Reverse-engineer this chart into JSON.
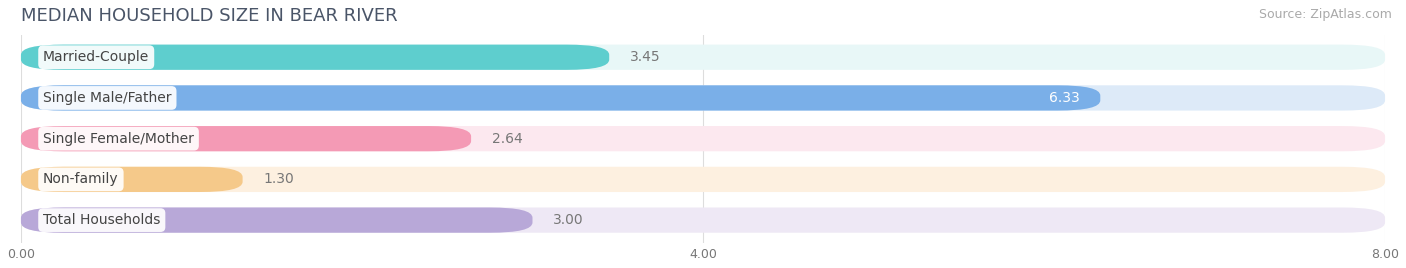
{
  "title": "MEDIAN HOUSEHOLD SIZE IN BEAR RIVER",
  "source": "Source: ZipAtlas.com",
  "categories": [
    "Married-Couple",
    "Single Male/Father",
    "Single Female/Mother",
    "Non-family",
    "Total Households"
  ],
  "values": [
    3.45,
    6.33,
    2.64,
    1.3,
    3.0
  ],
  "bar_colors": [
    "#5ecece",
    "#7aafe8",
    "#f49ab5",
    "#f5c98a",
    "#b8a8d8"
  ],
  "bar_bg_colors": [
    "#e8f7f7",
    "#ddeaf8",
    "#fce8ef",
    "#fdf0e0",
    "#eee8f5"
  ],
  "xlim": [
    0,
    8.0
  ],
  "xticks": [
    0.0,
    4.0,
    8.0
  ],
  "xtick_labels": [
    "0.00",
    "4.00",
    "8.00"
  ],
  "value_label_color_inside": "#ffffff",
  "value_label_color_outside": "#777777",
  "bar_height": 0.62,
  "bar_gap": 0.38,
  "background_color": "#ffffff",
  "title_color": "#4a5568",
  "title_fontsize": 13,
  "source_fontsize": 9,
  "label_fontsize": 10,
  "value_fontsize": 10
}
